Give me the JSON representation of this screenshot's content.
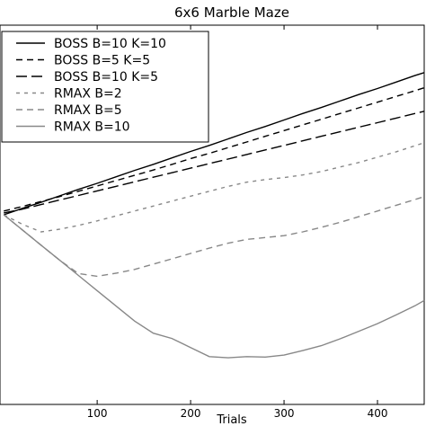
{
  "chart_data": {
    "type": "line",
    "title": "6x6 Marble Maze",
    "xlabel": "Trials",
    "ylabel": "",
    "xlim": [
      0,
      450
    ],
    "x_ticks": [
      100,
      200,
      300,
      400
    ],
    "ylim": [
      0,
      10
    ],
    "grid": false,
    "legend_position": "upper-left",
    "series": [
      {
        "name": "BOSS B=10 K=10",
        "color": "#000000",
        "dash": "solid",
        "x": [
          0,
          20,
          40,
          60,
          80,
          100,
          120,
          140,
          160,
          180,
          200,
          220,
          240,
          260,
          280,
          300,
          320,
          340,
          360,
          380,
          400,
          420,
          440,
          450
        ],
        "y": [
          5.0,
          5.17,
          5.33,
          5.5,
          5.67,
          5.83,
          6.0,
          6.17,
          6.33,
          6.5,
          6.67,
          6.83,
          7.0,
          7.17,
          7.33,
          7.5,
          7.67,
          7.83,
          8.0,
          8.17,
          8.33,
          8.5,
          8.67,
          8.75
        ]
      },
      {
        "name": "BOSS B=5 K=5",
        "color": "#000000",
        "dash": "dashed",
        "x": [
          0,
          20,
          40,
          60,
          80,
          100,
          120,
          140,
          160,
          180,
          200,
          220,
          240,
          260,
          280,
          300,
          320,
          340,
          360,
          380,
          400,
          420,
          440,
          450
        ],
        "y": [
          5.1,
          5.22,
          5.35,
          5.48,
          5.62,
          5.76,
          5.9,
          6.04,
          6.18,
          6.33,
          6.48,
          6.62,
          6.77,
          6.92,
          7.07,
          7.22,
          7.37,
          7.52,
          7.67,
          7.82,
          7.97,
          8.12,
          8.27,
          8.35
        ]
      },
      {
        "name": "BOSS B=10 K=5",
        "color": "#000000",
        "dash": "longdash",
        "x": [
          0,
          20,
          40,
          60,
          80,
          100,
          120,
          140,
          160,
          180,
          200,
          220,
          240,
          260,
          280,
          300,
          320,
          340,
          360,
          380,
          400,
          420,
          440,
          450
        ],
        "y": [
          5.05,
          5.15,
          5.27,
          5.39,
          5.51,
          5.63,
          5.75,
          5.87,
          5.99,
          6.11,
          6.23,
          6.35,
          6.47,
          6.59,
          6.71,
          6.83,
          6.95,
          7.07,
          7.19,
          7.31,
          7.43,
          7.55,
          7.67,
          7.73
        ]
      },
      {
        "name": "RMAX B=2",
        "color": "#888888",
        "dash": "dotted",
        "x": [
          0,
          20,
          40,
          60,
          80,
          100,
          120,
          140,
          160,
          180,
          200,
          220,
          240,
          260,
          280,
          300,
          320,
          340,
          360,
          380,
          400,
          420,
          440,
          450
        ],
        "y": [
          5.0,
          4.75,
          4.55,
          4.62,
          4.72,
          4.84,
          4.97,
          5.1,
          5.23,
          5.36,
          5.49,
          5.62,
          5.75,
          5.86,
          5.93,
          5.98,
          6.05,
          6.14,
          6.26,
          6.38,
          6.52,
          6.66,
          6.82,
          6.9
        ]
      },
      {
        "name": "RMAX B=5",
        "color": "#888888",
        "dash": "dashed",
        "x": [
          0,
          20,
          40,
          60,
          80,
          100,
          120,
          140,
          160,
          180,
          200,
          220,
          240,
          260,
          280,
          300,
          320,
          340,
          360,
          380,
          400,
          420,
          440,
          450
        ],
        "y": [
          5.0,
          4.6,
          4.2,
          3.8,
          3.45,
          3.38,
          3.46,
          3.56,
          3.7,
          3.84,
          3.98,
          4.12,
          4.25,
          4.35,
          4.4,
          4.45,
          4.55,
          4.67,
          4.8,
          4.95,
          5.1,
          5.25,
          5.4,
          5.48
        ]
      },
      {
        "name": "RMAX B=10",
        "color": "#888888",
        "dash": "solid",
        "x": [
          0,
          20,
          40,
          60,
          80,
          100,
          120,
          140,
          160,
          180,
          200,
          220,
          240,
          260,
          280,
          300,
          320,
          340,
          360,
          380,
          400,
          420,
          440,
          450
        ],
        "y": [
          5.0,
          4.6,
          4.2,
          3.8,
          3.4,
          3.0,
          2.6,
          2.2,
          1.88,
          1.74,
          1.5,
          1.26,
          1.23,
          1.26,
          1.25,
          1.3,
          1.42,
          1.55,
          1.73,
          1.93,
          2.13,
          2.36,
          2.6,
          2.74
        ]
      }
    ]
  }
}
